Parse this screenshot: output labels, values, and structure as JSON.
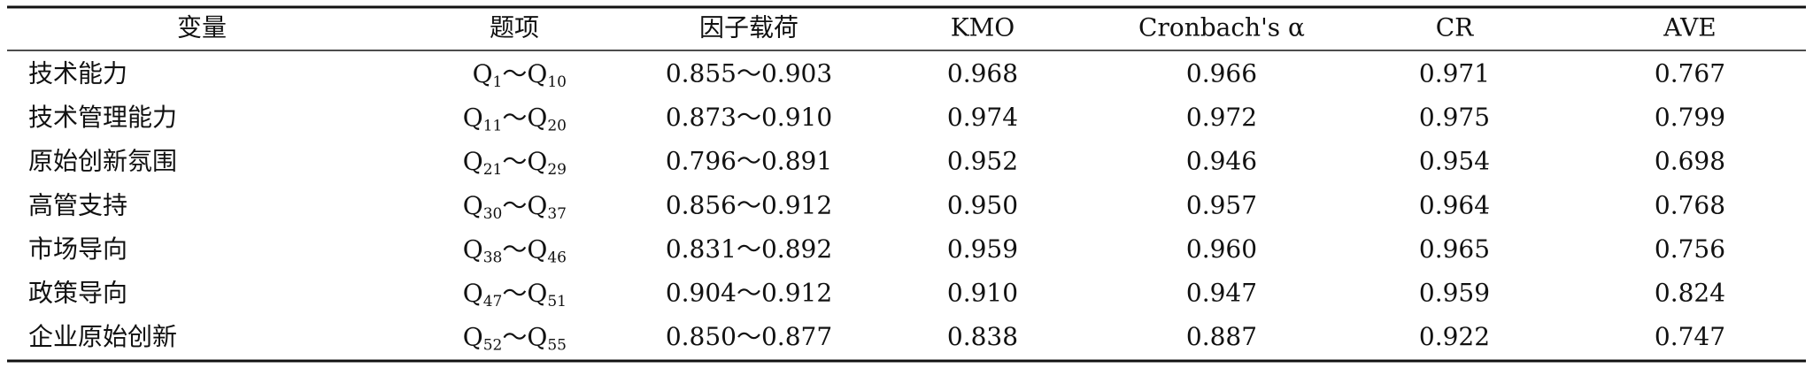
{
  "table": {
    "header": [
      "变量",
      "题项",
      "因子载荷",
      "KMO",
      "Cronbach's α",
      "CR",
      "AVE"
    ],
    "rows": [
      [
        "技术能力",
        [
          "Q",
          "1",
          "～",
          "Q",
          "10"
        ],
        "0.855～0.903",
        "0.968",
        "0.966",
        "0.971",
        "0.767"
      ],
      [
        "技术管理能力",
        [
          "Q",
          "11",
          "～",
          "Q",
          "20"
        ],
        "0.873～0.910",
        "0.974",
        "0.972",
        "0.975",
        "0.799"
      ],
      [
        "原始创新氛围",
        [
          "Q",
          "21",
          "～",
          "Q",
          "29"
        ],
        "0.796～0.891",
        "0.952",
        "0.946",
        "0.954",
        "0.698"
      ],
      [
        "高管支持",
        [
          "Q",
          "30",
          "～",
          "Q",
          "37"
        ],
        "0.856～0.912",
        "0.950",
        "0.957",
        "0.964",
        "0.768"
      ],
      [
        "市场导向",
        [
          "Q",
          "38",
          "～",
          "Q",
          "46"
        ],
        "0.831～0.892",
        "0.959",
        "0.960",
        "0.965",
        "0.756"
      ],
      [
        "政策导向",
        [
          "Q",
          "47",
          "～",
          "Q",
          "51"
        ],
        "0.904～0.912",
        "0.910",
        "0.947",
        "0.959",
        "0.824"
      ],
      [
        "企业原始创新",
        [
          "Q",
          "52",
          "～",
          "Q",
          "55"
        ],
        "0.850～0.877",
        "0.838",
        "0.887",
        "0.922",
        "0.747"
      ]
    ]
  }
}
